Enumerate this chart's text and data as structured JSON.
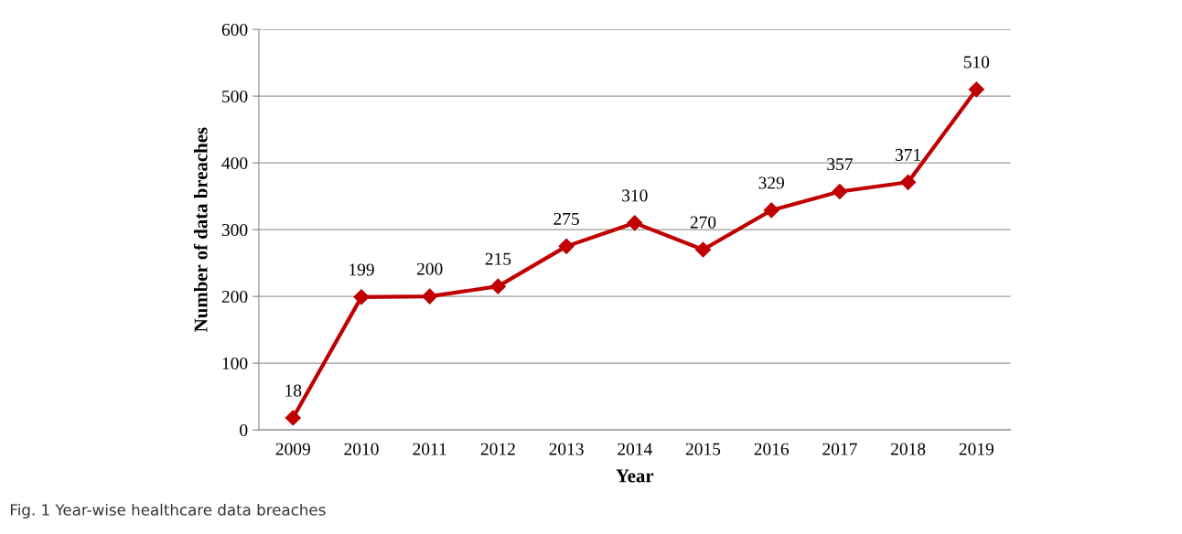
{
  "chart_data": {
    "type": "line",
    "xlabel": "Year",
    "ylabel": "Number of data breaches",
    "categories": [
      "2009",
      "2010",
      "2011",
      "2012",
      "2013",
      "2014",
      "2015",
      "2016",
      "2017",
      "2018",
      "2019"
    ],
    "series": [
      {
        "color": "#c00000",
        "values": [
          18,
          199,
          200,
          215,
          275,
          310,
          270,
          329,
          357,
          371,
          510
        ]
      }
    ],
    "ylim": [
      0,
      600
    ],
    "yticks": [
      0,
      100,
      200,
      300,
      400,
      500,
      600
    ],
    "grid": "y",
    "marker": "diamond",
    "line_style": "solid",
    "data_labels": true,
    "annotations": [
      "Fig. 1 Year-wise healthcare data breaches"
    ]
  }
}
